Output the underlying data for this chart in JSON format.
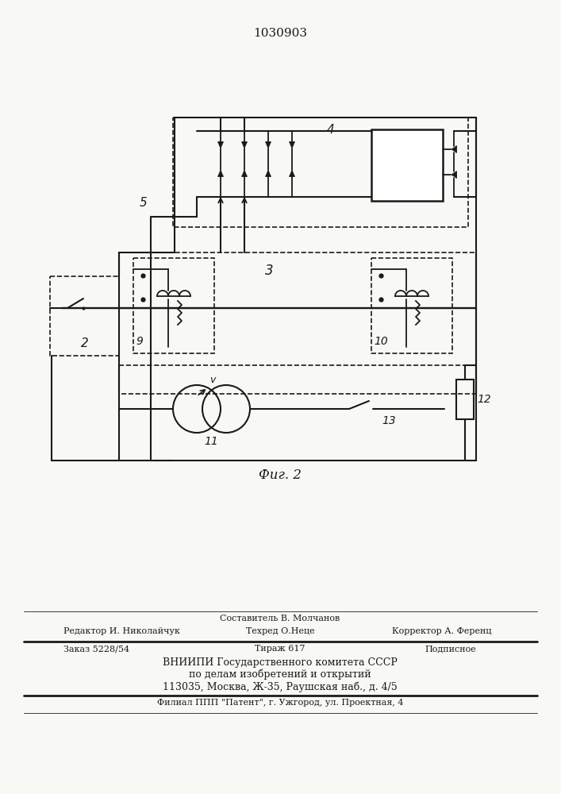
{
  "patent_number": "1030903",
  "fig_label": "Фиг. 2",
  "background_color": "#f8f8f5",
  "line_color": "#1a1a1a",
  "footer_lines": [
    "Составитель В. Молчанов",
    "Редактор И. Николайчук       Техред О.Неце            Корректор А. Ференц",
    "Заказ 5228/54         Тираж 617                 Подписное",
    "ВНИИПИ Государственного комитета СССР",
    "по делам изобретений и открытий",
    "113035, Москва, Ж-35, Раушская наб., д. 4/5",
    "Филиал ППП \"Патент\", г. Ужгород, ул. Проектная, 4"
  ]
}
